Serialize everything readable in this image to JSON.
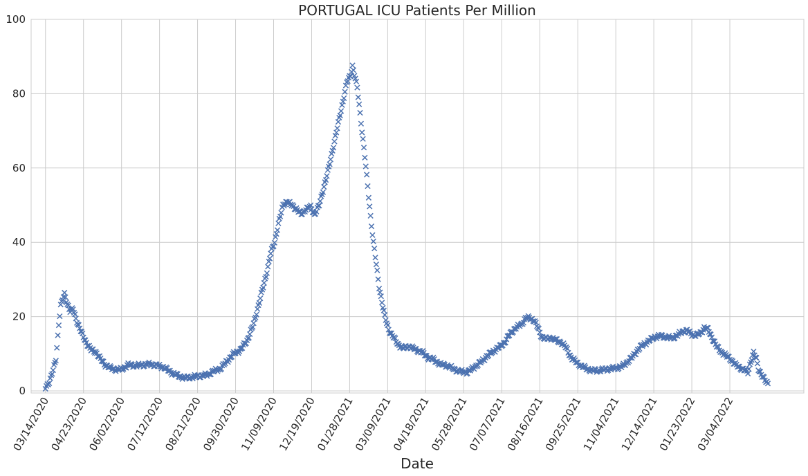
{
  "chart_data": {
    "type": "scatter",
    "title": "PORTUGAL   ICU Patients Per Million",
    "xlabel": "Date",
    "ylabel": "",
    "x_start": "03/04/2020",
    "x_end": "04/13/2022",
    "ylim": [
      0,
      100
    ],
    "yticks": [
      0,
      20,
      40,
      60,
      80,
      100
    ],
    "xticks": [
      "03/14/2020",
      "04/23/2020",
      "06/02/2020",
      "07/12/2020",
      "08/21/2020",
      "09/30/2020",
      "11/09/2020",
      "12/19/2020",
      "01/28/2021",
      "03/09/2021",
      "04/18/2021",
      "05/28/2021",
      "07/07/2021",
      "08/16/2021",
      "09/25/2021",
      "11/04/2021",
      "12/14/2021",
      "01/23/2022",
      "03/04/2022"
    ],
    "grid": true,
    "marker": "x",
    "color": "#4c72b0",
    "series": [
      {
        "points": [
          [
            "03/14/2020",
            0.8
          ],
          [
            "03/18/2020",
            2.5
          ],
          [
            "03/22/2020",
            5.5
          ],
          [
            "03/25/2020",
            8.5
          ],
          [
            "03/28/2020",
            18
          ],
          [
            "03/30/2020",
            23
          ],
          [
            "04/01/2020",
            24.5
          ],
          [
            "04/03/2020",
            26
          ],
          [
            "04/06/2020",
            23.5
          ],
          [
            "04/09/2020",
            21.5
          ],
          [
            "04/12/2020",
            22
          ],
          [
            "04/15/2020",
            19.5
          ],
          [
            "04/18/2020",
            17.5
          ],
          [
            "04/22/2020",
            15
          ],
          [
            "04/26/2020",
            13
          ],
          [
            "05/01/2020",
            11
          ],
          [
            "05/06/2020",
            10.5
          ],
          [
            "05/11/2020",
            8.5
          ],
          [
            "05/16/2020",
            7
          ],
          [
            "05/21/2020",
            6.2
          ],
          [
            "05/26/2020",
            5.8
          ],
          [
            "06/02/2020",
            5.8
          ],
          [
            "06/09/2020",
            7
          ],
          [
            "06/18/2020",
            6.8
          ],
          [
            "06/25/2020",
            7
          ],
          [
            "07/02/2020",
            7.2
          ],
          [
            "07/10/2020",
            6.8
          ],
          [
            "07/17/2020",
            6.3
          ],
          [
            "07/24/2020",
            5
          ],
          [
            "08/01/2020",
            4
          ],
          [
            "08/08/2020",
            3.5
          ],
          [
            "08/15/2020",
            3.7
          ],
          [
            "08/22/2020",
            4
          ],
          [
            "08/31/2020",
            4.3
          ],
          [
            "09/06/2020",
            5.2
          ],
          [
            "09/14/2020",
            6
          ],
          [
            "09/21/2020",
            8
          ],
          [
            "09/28/2020",
            10
          ],
          [
            "10/05/2020",
            11
          ],
          [
            "10/12/2020",
            13.5
          ],
          [
            "10/19/2020",
            18
          ],
          [
            "10/26/2020",
            25
          ],
          [
            "11/01/2020",
            31
          ],
          [
            "11/06/2020",
            37
          ],
          [
            "11/10/2020",
            40
          ],
          [
            "11/14/2020",
            45
          ],
          [
            "11/19/2020",
            50
          ],
          [
            "11/23/2020",
            51
          ],
          [
            "11/28/2020",
            50
          ],
          [
            "12/03/2020",
            49
          ],
          [
            "12/08/2020",
            47.5
          ],
          [
            "12/13/2020",
            49
          ],
          [
            "12/18/2020",
            49.5
          ],
          [
            "12/22/2020",
            47.5
          ],
          [
            "12/27/2020",
            50
          ],
          [
            "01/01/2021",
            55
          ],
          [
            "01/06/2021",
            60
          ],
          [
            "01/11/2021",
            66
          ],
          [
            "01/16/2021",
            72
          ],
          [
            "01/21/2021",
            78
          ],
          [
            "01/25/2021",
            83
          ],
          [
            "01/29/2021",
            85
          ],
          [
            "01/31/2021",
            87.5
          ],
          [
            "02/03/2021",
            84
          ],
          [
            "02/05/2021",
            81.5
          ],
          [
            "02/07/2021",
            77
          ],
          [
            "02/10/2021",
            70
          ],
          [
            "02/13/2021",
            63
          ],
          [
            "02/16/2021",
            55
          ],
          [
            "02/19/2021",
            47
          ],
          [
            "02/22/2021",
            40
          ],
          [
            "02/25/2021",
            34
          ],
          [
            "02/28/2021",
            28
          ],
          [
            "03/03/2021",
            24
          ],
          [
            "03/06/2021",
            20
          ],
          [
            "03/10/2021",
            16.5
          ],
          [
            "03/15/2021",
            14.5
          ],
          [
            "03/20/2021",
            12.5
          ],
          [
            "03/25/2021",
            11.5
          ],
          [
            "04/01/2021",
            12
          ],
          [
            "04/08/2021",
            11
          ],
          [
            "04/14/2021",
            10.5
          ],
          [
            "04/20/2021",
            9
          ],
          [
            "04/26/2021",
            8.5
          ],
          [
            "05/03/2021",
            7.2
          ],
          [
            "05/11/2021",
            6.8
          ],
          [
            "05/18/2021",
            5.8
          ],
          [
            "05/25/2021",
            5.2
          ],
          [
            "06/01/2021",
            5
          ],
          [
            "06/07/2021",
            6.2
          ],
          [
            "06/14/2021",
            7.5
          ],
          [
            "06/20/2021",
            9
          ],
          [
            "06/27/2021",
            10.5
          ],
          [
            "07/03/2021",
            11.5
          ],
          [
            "07/10/2021",
            13
          ],
          [
            "07/16/2021",
            15.5
          ],
          [
            "07/22/2021",
            17
          ],
          [
            "07/28/2021",
            18
          ],
          [
            "08/01/2021",
            19.5
          ],
          [
            "08/05/2021",
            19.7
          ],
          [
            "08/10/2021",
            19
          ],
          [
            "08/14/2021",
            17
          ],
          [
            "08/18/2021",
            14.5
          ],
          [
            "08/23/2021",
            14
          ],
          [
            "08/28/2021",
            14.3
          ],
          [
            "09/03/2021",
            13.5
          ],
          [
            "09/08/2021",
            13
          ],
          [
            "09/13/2021",
            11.5
          ],
          [
            "09/18/2021",
            9
          ],
          [
            "09/23/2021",
            7.8
          ],
          [
            "09/28/2021",
            6.8
          ],
          [
            "10/04/2021",
            6
          ],
          [
            "10/10/2021",
            5.5
          ],
          [
            "10/17/2021",
            5.5
          ],
          [
            "10/24/2021",
            5.8
          ],
          [
            "10/31/2021",
            6
          ],
          [
            "11/05/2021",
            6.2
          ],
          [
            "11/10/2021",
            6.5
          ],
          [
            "11/15/2021",
            7.5
          ],
          [
            "11/21/2021",
            9
          ],
          [
            "11/27/2021",
            11
          ],
          [
            "12/03/2021",
            12.5
          ],
          [
            "12/09/2021",
            13.5
          ],
          [
            "12/15/2021",
            14.5
          ],
          [
            "12/21/2021",
            14.8
          ],
          [
            "12/27/2021",
            14.5
          ],
          [
            "01/02/2022",
            14.2
          ],
          [
            "01/08/2022",
            15
          ],
          [
            "01/13/2022",
            16
          ],
          [
            "01/18/2022",
            16.2
          ],
          [
            "01/23/2022",
            15.2
          ],
          [
            "01/28/2022",
            15
          ],
          [
            "02/01/2022",
            15.5
          ],
          [
            "02/05/2022",
            17
          ],
          [
            "02/09/2022",
            16.5
          ],
          [
            "02/13/2022",
            14.5
          ],
          [
            "02/18/2022",
            12
          ],
          [
            "02/23/2022",
            10.5
          ],
          [
            "02/28/2022",
            9.5
          ],
          [
            "03/05/2022",
            8.5
          ],
          [
            "03/10/2022",
            7
          ],
          [
            "03/15/2022",
            6.2
          ],
          [
            "03/20/2022",
            5.5
          ],
          [
            "03/23/2022",
            5
          ],
          [
            "03/26/2022",
            8
          ],
          [
            "03/29/2022",
            10.2
          ],
          [
            "04/01/2022",
            8.5
          ],
          [
            "04/03/2022",
            6
          ],
          [
            "04/06/2022",
            4.5
          ],
          [
            "04/09/2022",
            3.2
          ],
          [
            "04/11/2022",
            2.5
          ],
          [
            "04/13/2022",
            2
          ]
        ]
      }
    ]
  }
}
